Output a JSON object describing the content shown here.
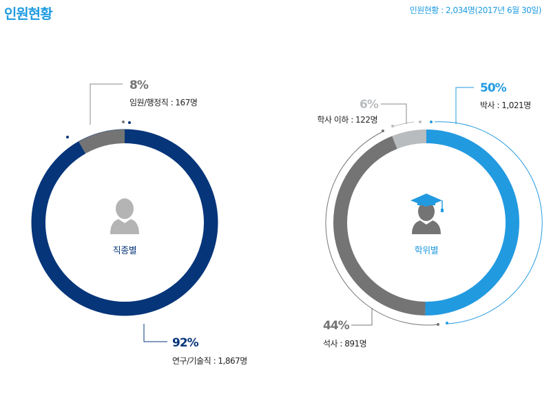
{
  "header": {
    "title": "인원현황",
    "summary_prefix": "인원현황 : ",
    "summary_total": "2,034명",
    "summary_date": "(2017년 6월 30일)"
  },
  "colors": {
    "accent": "#1e9be0",
    "navy": "#06357a",
    "gray": "#747474",
    "light_gray": "#b9bcbf",
    "blue": "#229ae0"
  },
  "chart_data": [
    {
      "type": "pie",
      "title": "직종별",
      "icon": "person-icon",
      "slices": [
        {
          "name": "임원/행정직",
          "percent": "8%",
          "value": 167,
          "value_label": "167명",
          "color": "#747474"
        },
        {
          "name": "연구/기술직",
          "percent": "92%",
          "value": 1867,
          "value_label": "1,867명",
          "color": "#06357a"
        }
      ]
    },
    {
      "type": "pie",
      "title": "학위별",
      "icon": "graduate-icon",
      "slices": [
        {
          "name": "박사",
          "percent": "50%",
          "value": 1021,
          "value_label": "1,021명",
          "color": "#229ae0"
        },
        {
          "name": "석사",
          "percent": "44%",
          "value": 891,
          "value_label": "891명",
          "color": "#747474"
        },
        {
          "name": "학사 이하",
          "percent": "6%",
          "value": 122,
          "value_label": "122명",
          "color": "#b9bcbf"
        }
      ]
    }
  ]
}
